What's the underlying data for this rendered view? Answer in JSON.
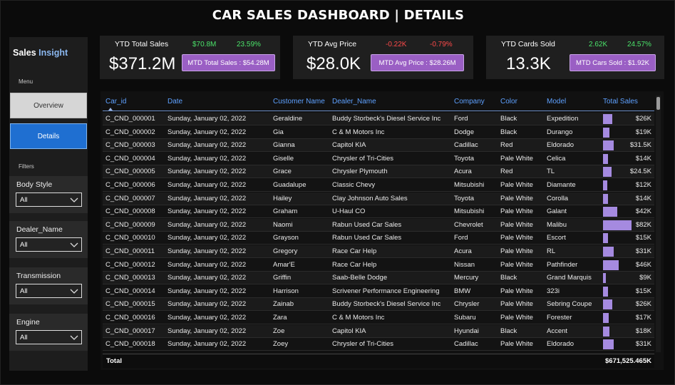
{
  "header": {
    "title": "CAR SALES DASHBOARD | DETAILS"
  },
  "sidebar": {
    "brand_main": "Sales",
    "brand_accent": "Insight",
    "menu_label": "Menu",
    "nav": [
      {
        "label": "Overview"
      },
      {
        "label": "Details"
      }
    ],
    "filters_label": "Filters",
    "filters": [
      {
        "title": "Body Style",
        "value": "All"
      },
      {
        "title": "Dealer_Name",
        "value": "All"
      },
      {
        "title": "Transmission",
        "value": "All"
      },
      {
        "title": "Engine",
        "value": "All"
      }
    ]
  },
  "kpis": [
    {
      "label": "YTD Total Sales",
      "delta1": "$70.8M",
      "delta1_color": "green",
      "delta2": "23.59%",
      "delta2_color": "green",
      "value": "$371.2M",
      "mtd": "MTD Total Sales : $54.28M"
    },
    {
      "label": "YTD Avg Price",
      "delta1": "-0.22K",
      "delta1_color": "red",
      "delta2": "-0.79%",
      "delta2_color": "red",
      "value": "$28.0K",
      "mtd": "MTD Avg Price : $28.26M"
    },
    {
      "label": "YTD Cards Sold",
      "delta1": "2.62K",
      "delta1_color": "green",
      "delta2": "24.57%",
      "delta2_color": "green",
      "value": "13.3K",
      "mtd": "MTD Cars Sold : $1.92K"
    }
  ],
  "table": {
    "columns": [
      "Car_id",
      "Date",
      "Customer Name",
      "Dealer_Name",
      "Company",
      "Color",
      "Model",
      "Total Sales"
    ],
    "bar_color": "#a58ae0",
    "bar_max": 82,
    "rows": [
      {
        "car_id": "C_CND_000001",
        "date": "Sunday, January 02, 2022",
        "customer": "Geraldine",
        "dealer": "Buddy Storbeck's Diesel Service Inc",
        "company": "Ford",
        "color": "Black",
        "model": "Expedition",
        "sales": "$26K",
        "sales_k": 26
      },
      {
        "car_id": "C_CND_000002",
        "date": "Sunday, January 02, 2022",
        "customer": "Gia",
        "dealer": "C & M Motors Inc",
        "company": "Dodge",
        "color": "Black",
        "model": "Durango",
        "sales": "$19K",
        "sales_k": 19
      },
      {
        "car_id": "C_CND_000003",
        "date": "Sunday, January 02, 2022",
        "customer": "Gianna",
        "dealer": "Capitol KIA",
        "company": "Cadillac",
        "color": "Red",
        "model": "Eldorado",
        "sales": "$31.5K",
        "sales_k": 31.5
      },
      {
        "car_id": "C_CND_000004",
        "date": "Sunday, January 02, 2022",
        "customer": "Giselle",
        "dealer": "Chrysler of Tri-Cities",
        "company": "Toyota",
        "color": "Pale White",
        "model": "Celica",
        "sales": "$14K",
        "sales_k": 14
      },
      {
        "car_id": "C_CND_000005",
        "date": "Sunday, January 02, 2022",
        "customer": "Grace",
        "dealer": "Chrysler Plymouth",
        "company": "Acura",
        "color": "Red",
        "model": "TL",
        "sales": "$24.5K",
        "sales_k": 24.5
      },
      {
        "car_id": "C_CND_000006",
        "date": "Sunday, January 02, 2022",
        "customer": "Guadalupe",
        "dealer": "Classic Chevy",
        "company": "Mitsubishi",
        "color": "Pale White",
        "model": "Diamante",
        "sales": "$12K",
        "sales_k": 12
      },
      {
        "car_id": "C_CND_000007",
        "date": "Sunday, January 02, 2022",
        "customer": "Hailey",
        "dealer": "Clay Johnson Auto Sales",
        "company": "Toyota",
        "color": "Pale White",
        "model": "Corolla",
        "sales": "$14K",
        "sales_k": 14
      },
      {
        "car_id": "C_CND_000008",
        "date": "Sunday, January 02, 2022",
        "customer": "Graham",
        "dealer": "U-Haul CO",
        "company": "Mitsubishi",
        "color": "Pale White",
        "model": "Galant",
        "sales": "$42K",
        "sales_k": 42
      },
      {
        "car_id": "C_CND_000009",
        "date": "Sunday, January 02, 2022",
        "customer": "Naomi",
        "dealer": "Rabun Used Car Sales",
        "company": "Chevrolet",
        "color": "Pale White",
        "model": "Malibu",
        "sales": "$82K",
        "sales_k": 82
      },
      {
        "car_id": "C_CND_000010",
        "date": "Sunday, January 02, 2022",
        "customer": "Grayson",
        "dealer": "Rabun Used Car Sales",
        "company": "Ford",
        "color": "Pale White",
        "model": "Escort",
        "sales": "$15K",
        "sales_k": 15
      },
      {
        "car_id": "C_CND_000011",
        "date": "Sunday, January 02, 2022",
        "customer": "Gregory",
        "dealer": "Race Car Help",
        "company": "Acura",
        "color": "Pale White",
        "model": "RL",
        "sales": "$31K",
        "sales_k": 31
      },
      {
        "car_id": "C_CND_000012",
        "date": "Sunday, January 02, 2022",
        "customer": "Amar'E",
        "dealer": "Race Car Help",
        "company": "Nissan",
        "color": "Pale White",
        "model": "Pathfinder",
        "sales": "$46K",
        "sales_k": 46
      },
      {
        "car_id": "C_CND_000013",
        "date": "Sunday, January 02, 2022",
        "customer": "Griffin",
        "dealer": "Saab-Belle Dodge",
        "company": "Mercury",
        "color": "Black",
        "model": "Grand Marquis",
        "sales": "$9K",
        "sales_k": 9
      },
      {
        "car_id": "C_CND_000014",
        "date": "Sunday, January 02, 2022",
        "customer": "Harrison",
        "dealer": "Scrivener Performance Engineering",
        "company": "BMW",
        "color": "Pale White",
        "model": "323i",
        "sales": "$15K",
        "sales_k": 15
      },
      {
        "car_id": "C_CND_000015",
        "date": "Sunday, January 02, 2022",
        "customer": "Zainab",
        "dealer": "Buddy Storbeck's Diesel Service Inc",
        "company": "Chrysler",
        "color": "Pale White",
        "model": "Sebring Coupe",
        "sales": "$26K",
        "sales_k": 26
      },
      {
        "car_id": "C_CND_000016",
        "date": "Sunday, January 02, 2022",
        "customer": "Zara",
        "dealer": "C & M Motors Inc",
        "company": "Subaru",
        "color": "Pale White",
        "model": "Forester",
        "sales": "$17K",
        "sales_k": 17
      },
      {
        "car_id": "C_CND_000017",
        "date": "Sunday, January 02, 2022",
        "customer": "Zoe",
        "dealer": "Capitol KIA",
        "company": "Hyundai",
        "color": "Black",
        "model": "Accent",
        "sales": "$18K",
        "sales_k": 18
      },
      {
        "car_id": "C_CND_000018",
        "date": "Sunday, January 02, 2022",
        "customer": "Zoey",
        "dealer": "Chrysler of Tri-Cities",
        "company": "Cadillac",
        "color": "Pale White",
        "model": "Eldorado",
        "sales": "$31K",
        "sales_k": 31
      }
    ],
    "total_label": "Total",
    "total_value": "$671,525.465K"
  }
}
